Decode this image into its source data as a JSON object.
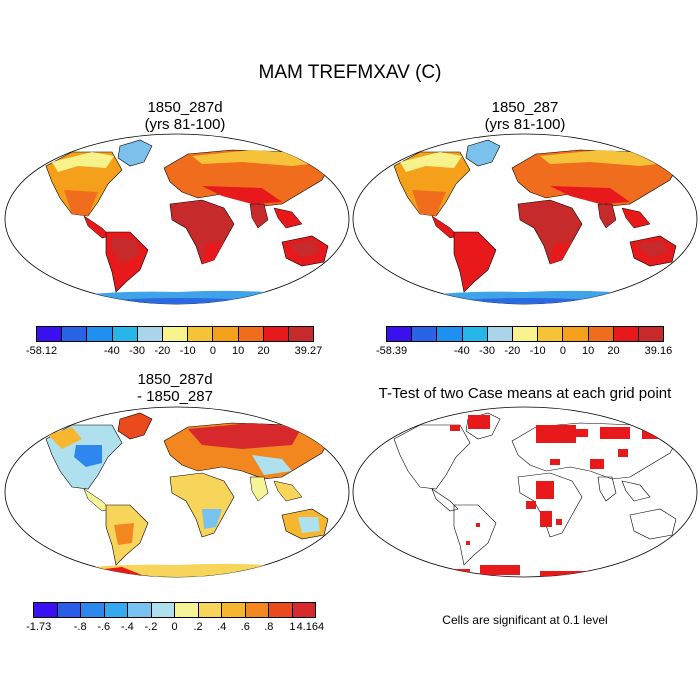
{
  "title": "MAM TREFMXAV (C)",
  "panels": [
    {
      "title_line1": "1850_287d",
      "title_line2": "(yrs 81-100)",
      "kind": "abs"
    },
    {
      "title_line1": "1850_287",
      "title_line2": "(yrs 81-100)",
      "kind": "abs"
    },
    {
      "title_line1": "1850_287d",
      "title_line2": "- 1850_287",
      "kind": "diff"
    },
    {
      "title_line1": "T-Test of two Case means at each grid point",
      "title_line2": "",
      "kind": "ttest"
    }
  ],
  "colorbars": {
    "abs_colors": [
      "#3a10f0",
      "#2a64e6",
      "#1f8ff0",
      "#27b6ea",
      "#a9d4ea",
      "#f7f28c",
      "#f5c23a",
      "#f5a01a",
      "#ef6d1c",
      "#e8191b",
      "#c62a2a"
    ],
    "abs_left": {
      "labels": [
        "-58.12",
        "-40",
        "-30",
        "-20",
        "-10",
        "0",
        "10",
        "20",
        "39.27"
      ]
    },
    "abs_right": {
      "labels": [
        "-58.39",
        "-40",
        "-30",
        "-20",
        "-10",
        "0",
        "10",
        "20",
        "39.16"
      ]
    },
    "diff_colors": [
      "#3a10f0",
      "#2a5ee6",
      "#2e87ec",
      "#35a8ef",
      "#78c2ef",
      "#aee0ee",
      "#f6f497",
      "#f6d55a",
      "#f7b630",
      "#f2861f",
      "#ea4a1c",
      "#d7282b"
    ],
    "diff": {
      "labels": [
        "-1.73",
        "-.8",
        "-.6",
        "-.4",
        "-.2",
        "0",
        ".2",
        ".4",
        ".6",
        ".8",
        "1",
        "4.164"
      ]
    }
  },
  "significance_note": "Cells are significant at 0.1 level"
}
